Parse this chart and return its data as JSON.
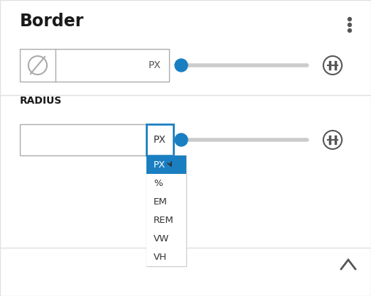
{
  "bg_color": "#ffffff",
  "border_color": "#e0e0e0",
  "title_border": "Border",
  "title_radius": "RADIUS",
  "unit_label": "PX",
  "slider_track_color": "#cccccc",
  "slider_thumb_color": "#1a7fc1",
  "dropdown_items": [
    "PX",
    "%",
    "EM",
    "REM",
    "VW",
    "VH"
  ],
  "dropdown_bg": "#ffffff",
  "dropdown_selected_bg": "#1a7fc1",
  "dropdown_selected_fg": "#ffffff",
  "dropdown_item_fg": "#333333",
  "dropdown_border": "#1a7fc1",
  "input_border_color": "#aaaaaa",
  "input_bg": "#ffffff",
  "dots_color": "#555555",
  "link_icon_color": "#555555",
  "chevron_color": "#555555",
  "slash_circle_color": "#aaaaaa",
  "section_divider_color": "#e0e0e0",
  "figsize": [
    5.22,
    4.17
  ],
  "dpi": 100
}
